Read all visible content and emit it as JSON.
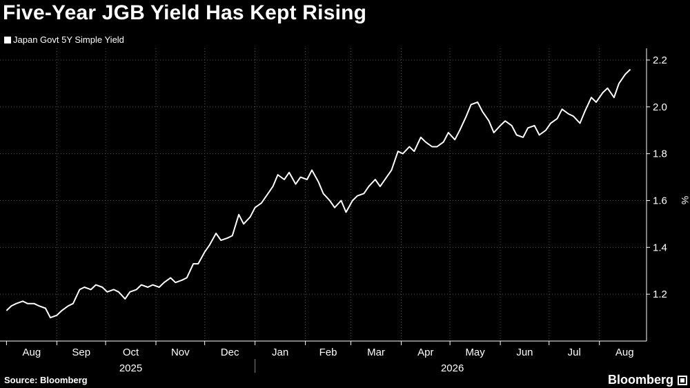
{
  "title": "Five-Year JGB Yield Has Kept Rising",
  "source": "Source: Bloomberg",
  "brand": "Bloomberg",
  "colors": {
    "background": "#000000",
    "line": "#ffffff",
    "grid": "#555555"
  },
  "chart_data": {
    "type": "line",
    "title": "Five-Year JGB Yield Has Kept Rising",
    "ylabel": "%",
    "ylim": [
      1.0,
      2.25
    ],
    "yticks": [
      1.2,
      1.4,
      1.6,
      1.8,
      2.0,
      2.2
    ],
    "ytick_labels": [
      "1.2",
      "1.4",
      "1.6",
      "1.8",
      "2.0",
      "2.2"
    ],
    "grid": "dotted-both",
    "legend": "top-left",
    "x_months": [
      "Aug",
      "Sep",
      "Oct",
      "Nov",
      "Dec",
      "Jan",
      "Feb",
      "Mar",
      "Apr",
      "May",
      "Jun",
      "Jul",
      "Aug"
    ],
    "x_years": [
      "2025",
      "2026"
    ],
    "series": [
      {
        "name": "Japan Govt 5Y Simple Yield",
        "points": [
          [
            "2025-08-01",
            1.13
          ],
          [
            "2025-08-04",
            1.15
          ],
          [
            "2025-08-07",
            1.16
          ],
          [
            "2025-08-11",
            1.17
          ],
          [
            "2025-08-14",
            1.16
          ],
          [
            "2025-08-18",
            1.16
          ],
          [
            "2025-08-21",
            1.15
          ],
          [
            "2025-08-25",
            1.14
          ],
          [
            "2025-08-28",
            1.1
          ],
          [
            "2025-09-01",
            1.11
          ],
          [
            "2025-09-04",
            1.13
          ],
          [
            "2025-09-08",
            1.15
          ],
          [
            "2025-09-11",
            1.16
          ],
          [
            "2025-09-15",
            1.22
          ],
          [
            "2025-09-18",
            1.23
          ],
          [
            "2025-09-22",
            1.22
          ],
          [
            "2025-09-25",
            1.24
          ],
          [
            "2025-09-29",
            1.23
          ],
          [
            "2025-10-02",
            1.21
          ],
          [
            "2025-10-06",
            1.22
          ],
          [
            "2025-10-09",
            1.21
          ],
          [
            "2025-10-13",
            1.18
          ],
          [
            "2025-10-16",
            1.21
          ],
          [
            "2025-10-20",
            1.22
          ],
          [
            "2025-10-23",
            1.24
          ],
          [
            "2025-10-27",
            1.23
          ],
          [
            "2025-10-30",
            1.24
          ],
          [
            "2025-11-03",
            1.23
          ],
          [
            "2025-11-06",
            1.25
          ],
          [
            "2025-11-10",
            1.27
          ],
          [
            "2025-11-13",
            1.25
          ],
          [
            "2025-11-17",
            1.26
          ],
          [
            "2025-11-20",
            1.27
          ],
          [
            "2025-11-24",
            1.33
          ],
          [
            "2025-11-27",
            1.33
          ],
          [
            "2025-12-01",
            1.38
          ],
          [
            "2025-12-04",
            1.41
          ],
          [
            "2025-12-08",
            1.46
          ],
          [
            "2025-12-11",
            1.43
          ],
          [
            "2025-12-15",
            1.44
          ],
          [
            "2025-12-18",
            1.45
          ],
          [
            "2025-12-22",
            1.54
          ],
          [
            "2025-12-25",
            1.5
          ],
          [
            "2025-12-29",
            1.53
          ],
          [
            "2026-01-01",
            1.57
          ],
          [
            "2026-01-05",
            1.59
          ],
          [
            "2026-01-08",
            1.62
          ],
          [
            "2026-01-12",
            1.66
          ],
          [
            "2026-01-15",
            1.71
          ],
          [
            "2026-01-19",
            1.69
          ],
          [
            "2026-01-22",
            1.72
          ],
          [
            "2026-01-26",
            1.67
          ],
          [
            "2026-01-29",
            1.7
          ],
          [
            "2026-02-02",
            1.69
          ],
          [
            "2026-02-05",
            1.73
          ],
          [
            "2026-02-09",
            1.68
          ],
          [
            "2026-02-12",
            1.63
          ],
          [
            "2026-02-16",
            1.6
          ],
          [
            "2026-02-19",
            1.57
          ],
          [
            "2026-02-23",
            1.6
          ],
          [
            "2026-02-26",
            1.55
          ],
          [
            "2026-03-02",
            1.6
          ],
          [
            "2026-03-05",
            1.62
          ],
          [
            "2026-03-09",
            1.63
          ],
          [
            "2026-03-12",
            1.66
          ],
          [
            "2026-03-16",
            1.69
          ],
          [
            "2026-03-19",
            1.66
          ],
          [
            "2026-03-23",
            1.7
          ],
          [
            "2026-03-26",
            1.73
          ],
          [
            "2026-03-30",
            1.81
          ],
          [
            "2026-04-02",
            1.8
          ],
          [
            "2026-04-06",
            1.83
          ],
          [
            "2026-04-09",
            1.81
          ],
          [
            "2026-04-13",
            1.87
          ],
          [
            "2026-04-16",
            1.85
          ],
          [
            "2026-04-20",
            1.83
          ],
          [
            "2026-04-23",
            1.83
          ],
          [
            "2026-04-27",
            1.85
          ],
          [
            "2026-04-30",
            1.89
          ],
          [
            "2026-05-04",
            1.86
          ],
          [
            "2026-05-07",
            1.9
          ],
          [
            "2026-05-11",
            1.96
          ],
          [
            "2026-05-14",
            2.01
          ],
          [
            "2026-05-18",
            2.02
          ],
          [
            "2026-05-21",
            1.98
          ],
          [
            "2026-05-25",
            1.94
          ],
          [
            "2026-05-28",
            1.89
          ],
          [
            "2026-06-01",
            1.92
          ],
          [
            "2026-06-04",
            1.94
          ],
          [
            "2026-06-08",
            1.92
          ],
          [
            "2026-06-11",
            1.88
          ],
          [
            "2026-06-15",
            1.87
          ],
          [
            "2026-06-18",
            1.91
          ],
          [
            "2026-06-22",
            1.92
          ],
          [
            "2026-06-25",
            1.88
          ],
          [
            "2026-06-29",
            1.9
          ],
          [
            "2026-07-02",
            1.93
          ],
          [
            "2026-07-06",
            1.95
          ],
          [
            "2026-07-09",
            1.99
          ],
          [
            "2026-07-13",
            1.97
          ],
          [
            "2026-07-16",
            1.96
          ],
          [
            "2026-07-20",
            1.93
          ],
          [
            "2026-07-23",
            1.98
          ],
          [
            "2026-07-27",
            2.04
          ],
          [
            "2026-07-30",
            2.02
          ],
          [
            "2026-08-03",
            2.06
          ],
          [
            "2026-08-06",
            2.08
          ],
          [
            "2026-08-10",
            2.04
          ],
          [
            "2026-08-13",
            2.1
          ],
          [
            "2026-08-17",
            2.14
          ],
          [
            "2026-08-20",
            2.16
          ]
        ]
      }
    ]
  }
}
